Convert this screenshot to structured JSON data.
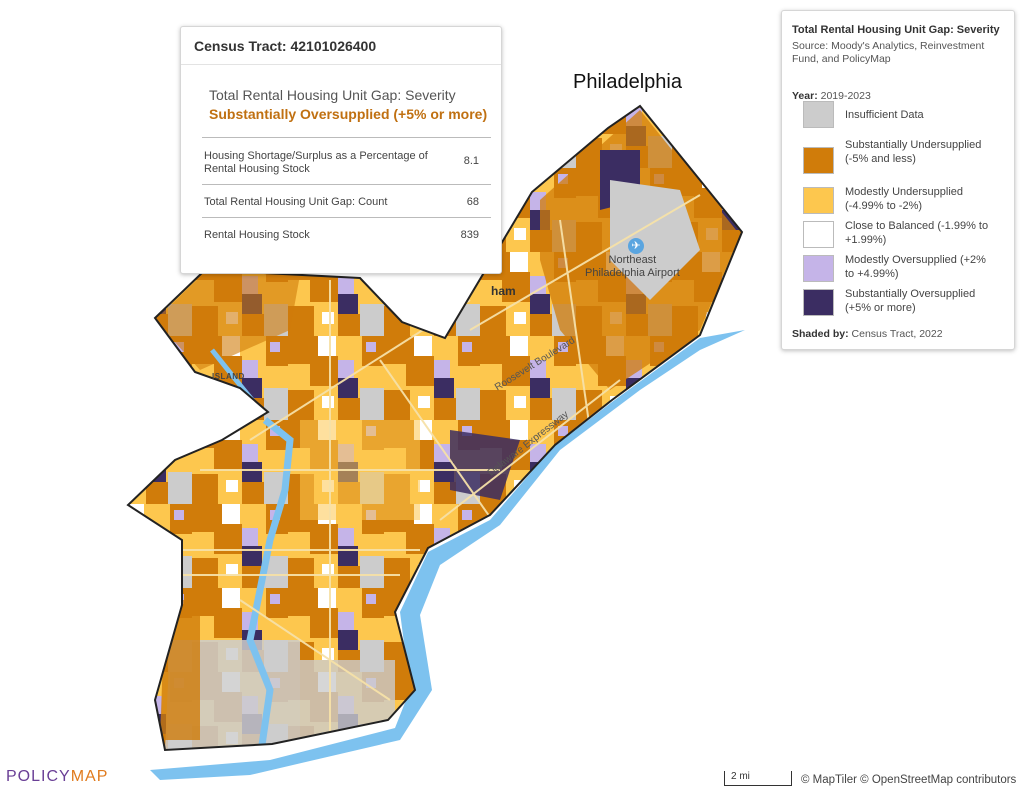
{
  "map": {
    "place_labels": {
      "city": "Philadelphia",
      "airport_line1": "Northeast",
      "airport_line2": "Philadelphia Airport",
      "road1": "Roosevelt Boulevard",
      "road2": "Delaware Expressway",
      "island": "ISLAND",
      "partial_label": "ham"
    },
    "colors": {
      "water": "#7dc2ef",
      "land": "#ffffff",
      "boundary": "#222222",
      "roads": "#f6e1a8"
    }
  },
  "popup": {
    "title": "Census Tract: 42101026400",
    "measure": "Total Rental Housing Unit Gap: Severity",
    "value": "Substantially Oversupplied (+5% or more)",
    "value_color": "#c07011",
    "rows": [
      {
        "label": "Housing Shortage/Surplus as a Percentage of Rental Housing Stock",
        "value": "8.1"
      },
      {
        "label": "Total Rental Housing Unit Gap: Count",
        "value": "68"
      },
      {
        "label": "Rental Housing Stock",
        "value": "839"
      }
    ]
  },
  "legend": {
    "title": "Total Rental Housing Unit Gap: Severity",
    "source": "Source: Moody's Analytics, Reinvestment Fund, and PolicyMap",
    "year_label": "Year:",
    "year_value": "2019-2023",
    "items": [
      {
        "label": "Insufficient Data",
        "color": "#cccccc"
      },
      {
        "label": "Substantially Undersupplied (-5% and less)",
        "color": "#d07c0a"
      },
      {
        "label": "Modestly Undersupplied (-4.99% to -2%)",
        "color": "#fdc74e"
      },
      {
        "label": "Close to Balanced (-1.99% to +1.99%)",
        "color": "#ffffff"
      },
      {
        "label": "Modestly Oversupplied (+2% to +4.99%)",
        "color": "#c5b4e8"
      },
      {
        "label": "Substantially Oversupplied (+5% or more)",
        "color": "#3b2d62"
      }
    ],
    "shaded_label": "Shaded by:",
    "shaded_value": "Census Tract, 2022"
  },
  "footer": {
    "logo_part1": "POLICY",
    "logo_part2": "MAP",
    "scale_label": "2 mi",
    "attribution": "© MapTiler © OpenStreetMap contributors"
  }
}
